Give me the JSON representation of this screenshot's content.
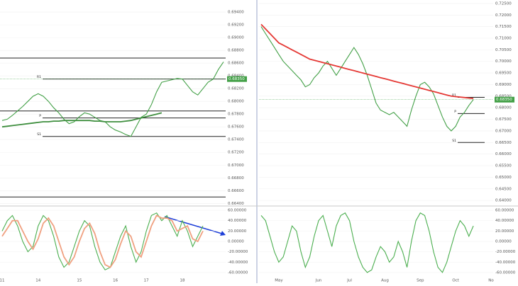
{
  "chart_data": [
    {
      "type": "line",
      "ylim": [
        0.6637,
        0.6959
      ],
      "yticks": [
        {
          "value": 0.694,
          "label": "0.69400"
        },
        {
          "value": 0.692,
          "label": "0.69200"
        },
        {
          "value": 0.69,
          "label": "0.69000"
        },
        {
          "value": 0.688,
          "label": "0.68800"
        },
        {
          "value": 0.686,
          "label": "0.68600"
        },
        {
          "value": 0.684,
          "label": "0.68400"
        },
        {
          "value": 0.682,
          "label": "0.68200"
        },
        {
          "value": 0.68,
          "label": "0.68000"
        },
        {
          "value": 0.678,
          "label": "0.67800"
        },
        {
          "value": 0.676,
          "label": "0.67600"
        },
        {
          "value": 0.674,
          "label": "0.67400"
        },
        {
          "value": 0.672,
          "label": "0.67200"
        },
        {
          "value": 0.67,
          "label": "0.67000"
        },
        {
          "value": 0.668,
          "label": "0.66800"
        },
        {
          "value": 0.666,
          "label": "0.66600"
        },
        {
          "value": 0.664,
          "label": "0.66400"
        }
      ],
      "levels": [
        0.6868,
        {
          "value": 0.6835,
          "label": "R1"
        },
        0.6785,
        {
          "value": 0.6774,
          "label": "P"
        },
        {
          "value": 0.6745,
          "label": "S1"
        },
        0.665
      ],
      "last": {
        "value": 0.6835,
        "label": "0.68350"
      },
      "series": [
        {
          "name": "Price",
          "color": "#43a047",
          "values": [
            0.677,
            0.6772,
            0.6778,
            0.6785,
            0.6792,
            0.68,
            0.6808,
            0.6812,
            0.6808,
            0.68,
            0.679,
            0.6782,
            0.6772,
            0.6765,
            0.6768,
            0.6776,
            0.6782,
            0.678,
            0.6775,
            0.677,
            0.6768,
            0.676,
            0.6755,
            0.6752,
            0.6748,
            0.6745,
            0.676,
            0.6775,
            0.678,
            0.6795,
            0.6815,
            0.683,
            0.6832,
            0.6834,
            0.6836,
            0.6835,
            0.6825,
            0.6815,
            0.681,
            0.682,
            0.683,
            0.6835,
            0.685,
            0.6862
          ]
        },
        {
          "name": "MA",
          "color": "#3e8e3e",
          "values": [
            0.676,
            0.6761,
            0.6762,
            0.6763,
            0.6764,
            0.6765,
            0.6766,
            0.6767,
            0.6768,
            0.6768,
            0.6769,
            0.6769,
            0.677,
            0.677,
            0.677,
            0.677,
            0.677,
            0.677,
            0.6769,
            0.6769,
            0.6768,
            0.6768,
            0.6768,
            0.6768,
            0.6769,
            0.677,
            0.6772,
            0.6774,
            0.6776,
            0.6778,
            0.678,
            0.6782,
            null,
            null,
            null,
            null,
            null,
            null,
            null,
            null,
            null,
            null,
            null,
            null
          ]
        }
      ]
    },
    {
      "type": "line",
      "ylim": [
        -67,
        67
      ],
      "yticks": [
        {
          "value": 60,
          "label": "60.00000"
        },
        {
          "value": 40,
          "label": "40.00000"
        },
        {
          "value": 20,
          "label": "20.00000"
        },
        {
          "value": 0,
          "label": "0.00000"
        },
        {
          "value": -20,
          "label": "-20.00000"
        },
        {
          "value": -40,
          "label": "-40.00000"
        },
        {
          "value": -60,
          "label": "-60.00000"
        }
      ],
      "categories": [
        "11",
        null,
        null,
        null,
        null,
        null,
        null,
        "14",
        null,
        null,
        null,
        null,
        null,
        null,
        null,
        "15",
        null,
        null,
        null,
        null,
        null,
        null,
        "16",
        null,
        null,
        null,
        null,
        null,
        "17",
        null,
        null,
        null,
        null,
        null,
        null,
        "18",
        null,
        null,
        null,
        null,
        null,
        null,
        null,
        null
      ],
      "series": [
        {
          "name": "Oscillator",
          "color": "#4caf50",
          "values": [
            20,
            40,
            50,
            30,
            0,
            -20,
            -10,
            30,
            50,
            40,
            10,
            -30,
            -50,
            -40,
            -10,
            20,
            40,
            30,
            -10,
            -40,
            -55,
            -50,
            -20,
            10,
            30,
            -10,
            -40,
            -20,
            20,
            50,
            55,
            40,
            50,
            30,
            10,
            40,
            20,
            -10,
            10,
            30,
            null,
            null,
            null,
            null
          ]
        },
        {
          "name": "Signal",
          "color": "#f0a080",
          "values": [
            10,
            25,
            40,
            40,
            20,
            0,
            -15,
            5,
            35,
            45,
            30,
            0,
            -30,
            -45,
            -30,
            0,
            25,
            35,
            15,
            -20,
            -45,
            -50,
            -35,
            -5,
            20,
            10,
            -20,
            -30,
            0,
            30,
            50,
            45,
            45,
            40,
            20,
            25,
            30,
            5,
            0,
            20,
            null,
            null,
            null,
            null
          ]
        }
      ]
    },
    {
      "type": "line",
      "ylim": [
        0.6379,
        0.7265
      ],
      "yticks": [
        {
          "value": 0.725,
          "label": "0.72500"
        },
        {
          "value": 0.72,
          "label": "0.72000"
        },
        {
          "value": 0.715,
          "label": "0.71500"
        },
        {
          "value": 0.71,
          "label": "0.71000"
        },
        {
          "value": 0.705,
          "label": "0.70500"
        },
        {
          "value": 0.7,
          "label": "0.70000"
        },
        {
          "value": 0.695,
          "label": "0.69500"
        },
        {
          "value": 0.69,
          "label": "0.69000"
        },
        {
          "value": 0.685,
          "label": "0.68500"
        },
        {
          "value": 0.68,
          "label": "0.68000"
        },
        {
          "value": 0.675,
          "label": "0.67500"
        },
        {
          "value": 0.67,
          "label": "0.67000"
        },
        {
          "value": 0.665,
          "label": "0.66500"
        },
        {
          "value": 0.66,
          "label": "0.66000"
        },
        {
          "value": 0.655,
          "label": "0.65500"
        },
        {
          "value": 0.65,
          "label": "0.65000"
        },
        {
          "value": 0.645,
          "label": "0.64500"
        },
        {
          "value": 0.64,
          "label": "0.64000"
        }
      ],
      "levels": [
        {
          "value": 0.6845,
          "label": "R1"
        },
        {
          "value": 0.6775,
          "label": "P"
        },
        {
          "value": 0.665,
          "label": "S1"
        }
      ],
      "last": {
        "value": 0.6835,
        "label": "0.68350"
      },
      "series": [
        {
          "name": "Price",
          "color": "#43a047",
          "values": [
            0.715,
            0.712,
            0.709,
            0.706,
            0.703,
            0.7,
            0.698,
            0.696,
            0.694,
            0.692,
            0.689,
            0.69,
            0.693,
            0.695,
            0.698,
            0.7,
            0.697,
            0.694,
            0.697,
            0.7,
            0.703,
            0.706,
            0.703,
            0.699,
            0.694,
            0.688,
            0.682,
            0.679,
            0.678,
            0.677,
            0.678,
            0.676,
            0.674,
            0.672,
            0.679,
            0.685,
            0.69,
            0.691,
            0.689,
            0.686,
            0.681,
            0.676,
            0.672,
            0.67,
            0.672,
            0.676,
            0.678,
            0.681,
            0.6835,
            null,
            null,
            null,
            null
          ]
        },
        {
          "name": "MA",
          "color": "#e53935",
          "values": [
            0.716,
            0.714,
            0.712,
            0.71,
            0.708,
            0.707,
            0.706,
            0.705,
            0.704,
            0.703,
            0.702,
            0.701,
            0.7005,
            0.7,
            0.6995,
            0.699,
            0.6985,
            0.698,
            0.6975,
            0.697,
            0.6965,
            0.696,
            0.6955,
            0.695,
            0.6945,
            0.694,
            0.6935,
            0.693,
            0.6925,
            0.692,
            0.6915,
            0.691,
            0.6905,
            0.69,
            0.6895,
            0.689,
            0.6885,
            0.688,
            0.6875,
            0.687,
            0.6865,
            0.686,
            0.6855,
            0.685,
            0.6848,
            0.6846,
            0.6844,
            0.6842,
            0.684,
            null,
            null,
            null,
            null
          ]
        }
      ]
    },
    {
      "type": "line",
      "ylim": [
        -67,
        67
      ],
      "yticks": [
        {
          "value": 60,
          "label": "60.00000"
        },
        {
          "value": 40,
          "label": "40.00000"
        },
        {
          "value": 20,
          "label": "20.00000"
        },
        {
          "value": 0,
          "label": "0.00000"
        },
        {
          "value": -20,
          "label": "-20.00000"
        },
        {
          "value": -40,
          "label": "-40.00000"
        },
        {
          "value": -60,
          "label": "-60.00000"
        }
      ],
      "categories": [
        null,
        null,
        null,
        null,
        "May",
        null,
        null,
        null,
        null,
        null,
        null,
        null,
        null,
        "Jun",
        null,
        null,
        null,
        null,
        null,
        null,
        "Jul",
        null,
        null,
        null,
        null,
        null,
        null,
        null,
        "Aug",
        null,
        null,
        null,
        null,
        null,
        null,
        null,
        "Sep",
        null,
        null,
        null,
        null,
        null,
        null,
        null,
        "Oct",
        null,
        null,
        null,
        null,
        null,
        null,
        null,
        "No"
      ],
      "series": [
        {
          "name": "Oscillator",
          "color": "#4caf50",
          "values": [
            50,
            40,
            10,
            -20,
            -40,
            -30,
            0,
            30,
            20,
            -20,
            -50,
            -30,
            10,
            40,
            50,
            20,
            -10,
            30,
            50,
            55,
            40,
            0,
            -30,
            -50,
            -60,
            -55,
            -30,
            -10,
            -20,
            -40,
            -30,
            0,
            -20,
            -50,
            0,
            40,
            55,
            50,
            20,
            -20,
            -50,
            -60,
            -40,
            -10,
            20,
            40,
            30,
            10,
            30,
            null,
            null,
            null,
            null
          ]
        }
      ]
    }
  ]
}
